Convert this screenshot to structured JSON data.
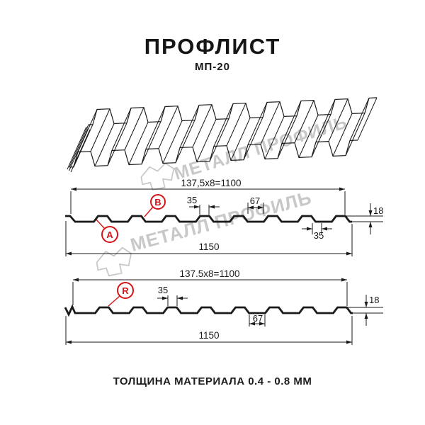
{
  "header": {
    "title": "ПРОФЛИСТ",
    "subtitle": "МП-20"
  },
  "footer": {
    "text": "ТОЛЩИНА МАТЕРИАЛА 0.4 - 0.8 ММ"
  },
  "watermark": {
    "text": "МЕТАЛЛ ПРОФИЛЬ"
  },
  "colors": {
    "line": "#1a1a1a",
    "accent_red": "#d41317",
    "watermark_gray": "#c8c8c8"
  },
  "profile_top": {
    "pitch_label": "137,5x8=1100",
    "overall_width_label": "1150",
    "crest_width_label": "35",
    "valley_width_label": "67",
    "height_label": "18",
    "bottom_crest_label": "35",
    "side_label_a": "A",
    "side_label_b": "B"
  },
  "profile_bottom": {
    "pitch_label": "137.5x8=1100",
    "overall_width_label": "1150",
    "crest_width_label": "35",
    "valley_width_label": "67",
    "height_label": "18",
    "side_label_r": "R"
  }
}
